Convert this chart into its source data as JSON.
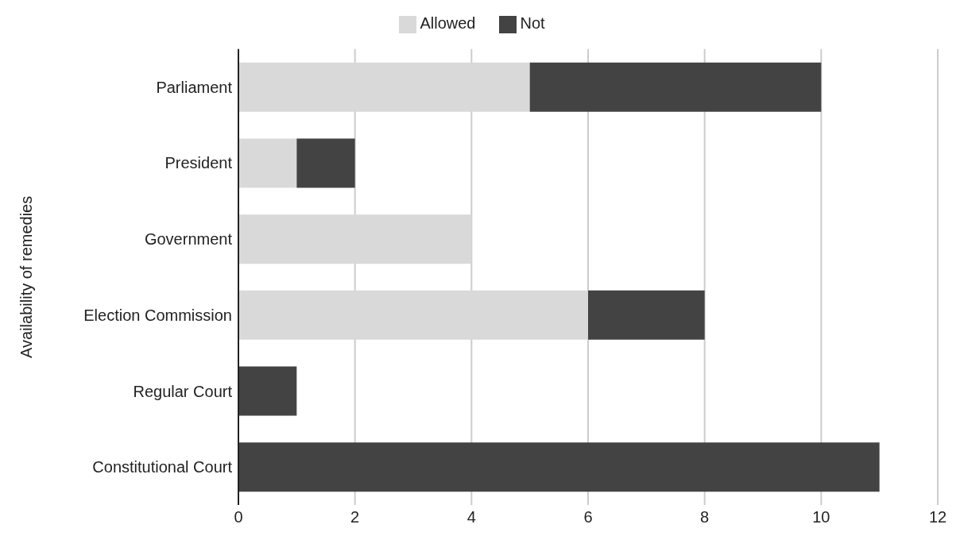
{
  "chart_data": {
    "type": "bar",
    "orientation": "horizontal",
    "stacked": true,
    "ylabel": "Availability of remedies",
    "categories": [
      "Parliament",
      "President",
      "Government",
      "Election Commission",
      "Regular Court",
      "Constitutional Court"
    ],
    "series": [
      {
        "name": "Allowed",
        "color": "#d9d9d9",
        "values": [
          5,
          1,
          4,
          6,
          0,
          0
        ]
      },
      {
        "name": "Not",
        "color": "#434343",
        "values": [
          5,
          1,
          0,
          2,
          1,
          11
        ]
      }
    ],
    "xlim": [
      0,
      12
    ],
    "xticks": [
      0,
      2,
      4,
      6,
      8,
      10,
      12
    ],
    "grid": "x",
    "legend": "top"
  }
}
